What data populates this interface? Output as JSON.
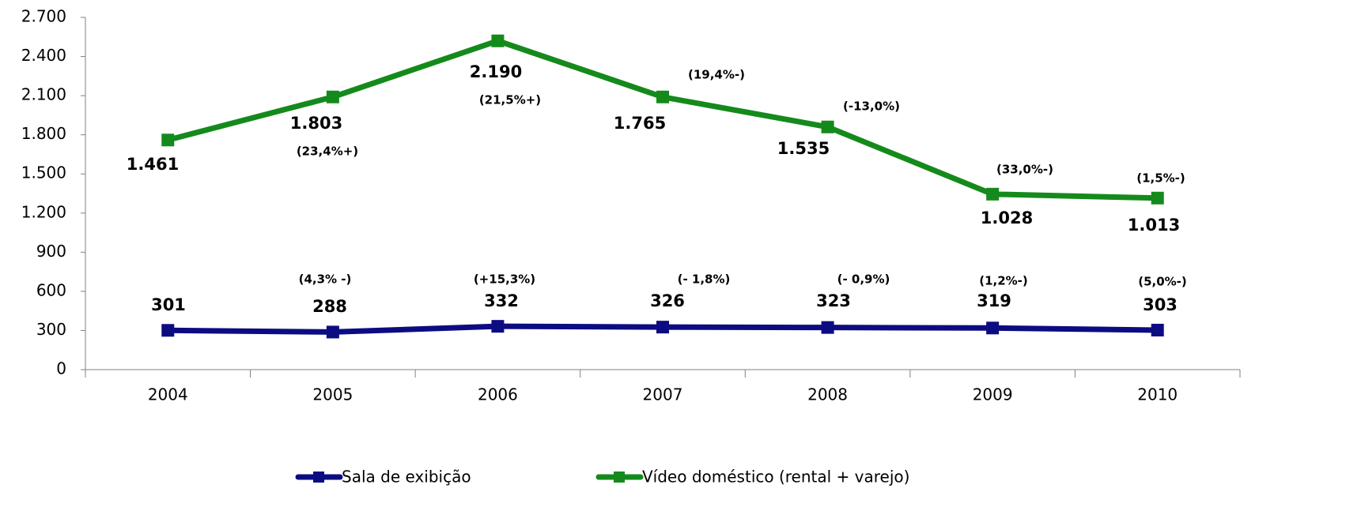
{
  "chart_data": {
    "type": "line",
    "categories": [
      "2004",
      "2005",
      "2006",
      "2007",
      "2008",
      "2009",
      "2010"
    ],
    "series": [
      {
        "name": "Sala de exibição",
        "color": "#0c0c82",
        "values": [
          301,
          288,
          332,
          326,
          323,
          319,
          303
        ],
        "value_labels": [
          "301",
          "288",
          "332",
          "326",
          "323",
          "319",
          "303"
        ],
        "changes": [
          null,
          "(4,3% -)",
          "(+15,3%)",
          "(- 1,8%)",
          "(- 0,9%)",
          "(1,2%-)",
          "(5,0%-)"
        ]
      },
      {
        "name": "Vídeo doméstico (rental + varejo)",
        "color": "#158a1c",
        "values": [
          1760,
          2090,
          2520,
          2090,
          1860,
          1345,
          1315
        ],
        "point_labels": [
          "1.461",
          "1.803",
          "2.190",
          "1.765",
          "1.535",
          "1.028",
          "1.013"
        ],
        "changes": [
          null,
          "(23,4%+)",
          "(21,5%+)",
          "(19,4%-)",
          "(-13,0%)",
          "(33,0%-)",
          "(1,5%-)"
        ]
      }
    ],
    "ylim": [
      0,
      2700
    ],
    "yticks": [
      0,
      300,
      600,
      900,
      {
        "value": 1200,
        "label": "1.200"
      },
      {
        "value": 1500,
        "label": "1.500"
      },
      {
        "value": 1800,
        "label": "1.800"
      },
      {
        "value": 2100,
        "label": "2.100"
      },
      {
        "value": 2400,
        "label": "2.400"
      },
      {
        "value": 2700,
        "label": "2.700"
      }
    ],
    "legend": "bottom"
  }
}
